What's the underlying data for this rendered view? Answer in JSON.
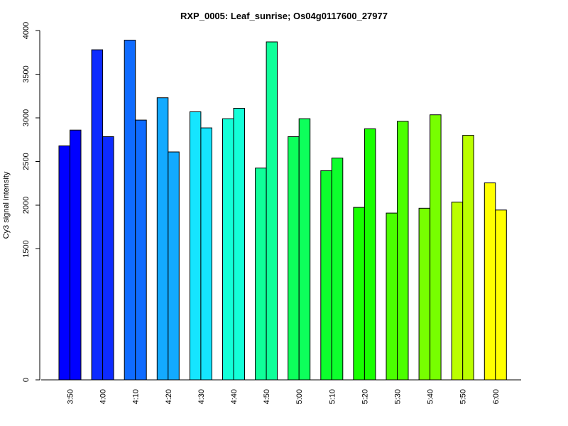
{
  "chart_data": {
    "type": "bar",
    "title": "RXP_0005: Leaf_sunrise; Os04g0117600_27977",
    "xlabel": "",
    "ylabel": "Cy3 signal intensity",
    "categories": [
      "3:50",
      "4:00",
      "4:10",
      "4:20",
      "4:30",
      "4:40",
      "4:50",
      "5:00",
      "5:10",
      "5:20",
      "5:30",
      "5:40",
      "5:50",
      "6:00"
    ],
    "series": [
      {
        "values": [
          2680,
          3780,
          3890,
          3230,
          3070,
          2990,
          2425,
          2785,
          2395,
          1975,
          1910,
          1965,
          2035,
          2255
        ]
      },
      {
        "values": [
          2860,
          2785,
          2975,
          2610,
          2885,
          3110,
          3870,
          2990,
          2540,
          2875,
          2960,
          3035,
          2800,
          1945
        ]
      }
    ],
    "colors": [
      "#0000FF",
      "#0D2BFF",
      "#0F6BFF",
      "#13AAFF",
      "#15E5FF",
      "#13FFD8",
      "#0FFF99",
      "#0DFF5B",
      "#0DFF2D",
      "#18FF00",
      "#4BFF00",
      "#77FF00",
      "#BBFF00",
      "#FFFF00"
    ],
    "yticks": [
      0,
      1500,
      2000,
      2500,
      3000,
      3500,
      4000
    ],
    "ylim": [
      0,
      4000
    ],
    "grid": false,
    "legend": "none"
  }
}
